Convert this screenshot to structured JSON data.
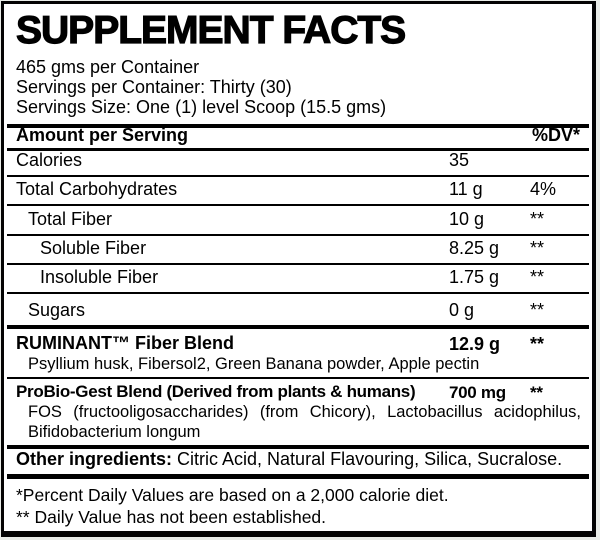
{
  "label": {
    "title": "SUPPLEMENT FACTS",
    "info_lines": [
      "465 gms per Container",
      "Servings per Container: Thirty (30)",
      "Servings Size: One (1) level Scoop (15.5 gms)"
    ],
    "table": {
      "header": {
        "amount_label": "Amount per Serving",
        "dv_label": "%DV*"
      },
      "rows": [
        {
          "name": "Calories",
          "amount": "35",
          "dv": ""
        },
        {
          "name": "Total Carbohydrates",
          "amount": "11 g",
          "dv": "4%"
        },
        {
          "name": "Total Fiber",
          "amount": "10 g",
          "dv": "**"
        },
        {
          "name": "Soluble Fiber",
          "amount": "8.25 g",
          "dv": "**"
        },
        {
          "name": "Insoluble Fiber",
          "amount": "1.75 g",
          "dv": "**"
        },
        {
          "name": "Sugars",
          "amount": "0 g",
          "dv": "**"
        }
      ],
      "blends": [
        {
          "name": "RUMINANT™ Fiber Blend",
          "amount": "12.9 g",
          "dv": "**",
          "ingredients": "Psyllium husk, Fibersol2, Green Banana powder, Apple pectin"
        },
        {
          "name": "ProBio-Gest Blend (Derived from plants & humans)",
          "amount": "700 mg",
          "dv": "**",
          "ingredients": "FOS (fructooligosaccharides) (from Chicory), Lactobacillus acidophilus, Bifidobacterium longum"
        }
      ]
    },
    "other_ingredients": {
      "label": "Other ingredients:",
      "text": " Citric Acid, Natural Flavouring, Silica, Sucralose."
    },
    "footnotes": [
      "*Percent Daily Values are based on a 2,000 calorie diet.",
      "** Daily Value has not been established."
    ]
  }
}
